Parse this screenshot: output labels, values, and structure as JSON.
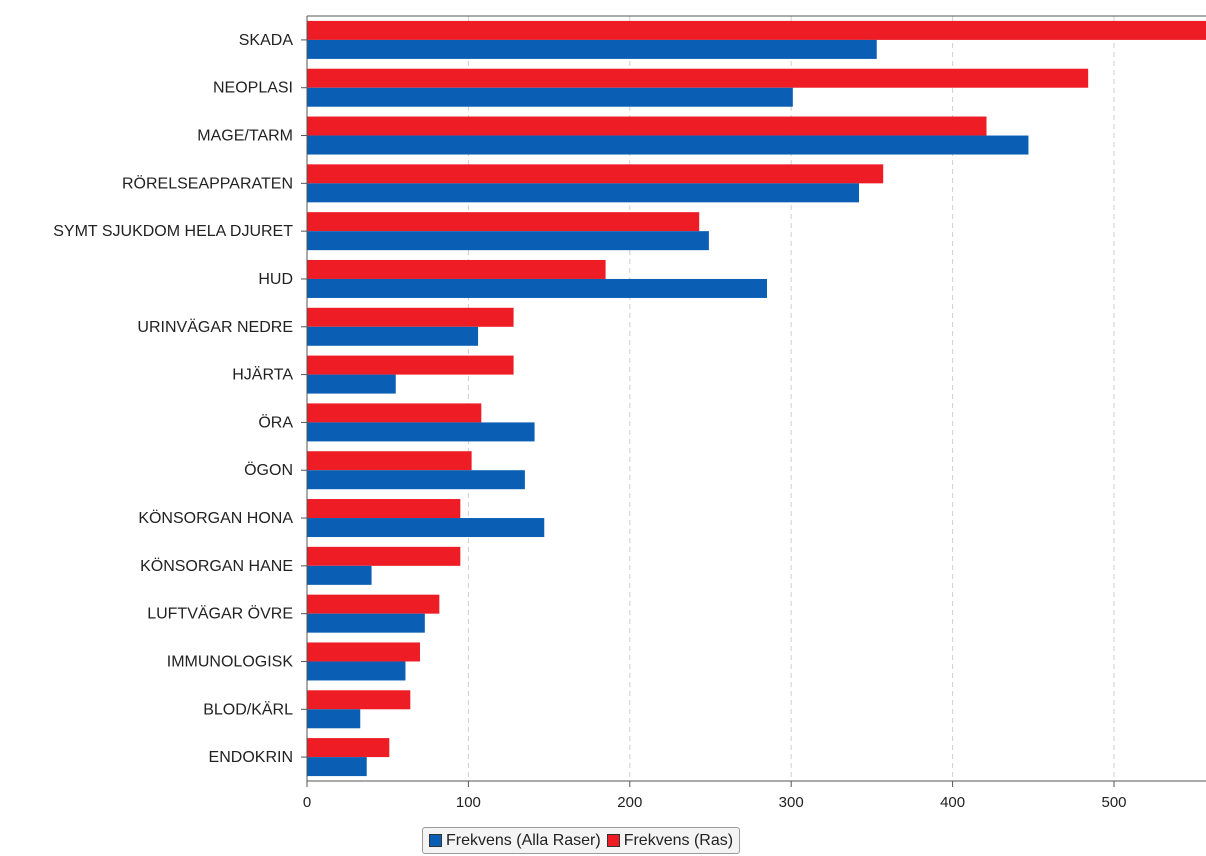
{
  "chart_data": {
    "type": "bar",
    "orientation": "horizontal",
    "categories": [
      "SKADA",
      "NEOPLASI",
      "MAGE/TARM",
      "RÖRELSEAPPARATEN",
      "SYMT SJUKDOM HELA DJURET",
      "HUD",
      "URINVÄGAR NEDRE",
      "HJÄRTA",
      "ÖRA",
      "ÖGON",
      "KÖNSORGAN HONA",
      "KÖNSORGAN HANE",
      "LUFTVÄGAR ÖVRE",
      "IMMUNOLOGISK",
      "BLOD/KÄRL",
      "ENDOKRIN"
    ],
    "series": [
      {
        "name": "Frekvens (Ras)",
        "color": "#ee1c25",
        "values": [
          560,
          484,
          421,
          357,
          243,
          185,
          128,
          128,
          108,
          102,
          95,
          95,
          82,
          70,
          64,
          51
        ]
      },
      {
        "name": "Frekvens (Alla Raser)",
        "color": "#0a5fb4",
        "values": [
          353,
          301,
          447,
          342,
          249,
          285,
          106,
          55,
          141,
          135,
          147,
          40,
          73,
          61,
          33,
          37
        ]
      }
    ],
    "xlim": [
      0,
      557
    ],
    "xticks": [
      "0",
      "100",
      "200",
      "300",
      "400",
      "500"
    ],
    "grid": "vertical-dashed",
    "legend_position": "bottom-center",
    "legend": [
      {
        "label": "Frekvens (Alla Raser)",
        "color": "#0a5fb4"
      },
      {
        "label": "Frekvens (Ras)",
        "color": "#ee1c25"
      }
    ]
  }
}
